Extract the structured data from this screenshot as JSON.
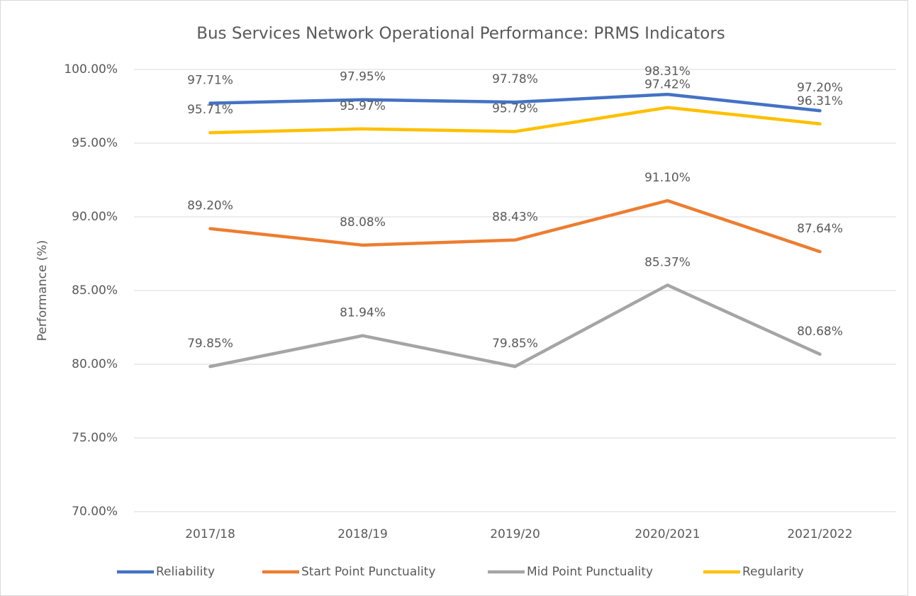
{
  "chart_data": {
    "type": "line",
    "title": "Bus Services Network Operational Performance: PRMS Indicators",
    "ylabel": "Performance (%)",
    "categories": [
      "2017/18",
      "2018/19",
      "2019/20",
      "2020/2021",
      "2021/2022"
    ],
    "ylim": [
      70,
      100
    ],
    "yticks": [
      {
        "value": 70,
        "label": "70.00%"
      },
      {
        "value": 75,
        "label": "75.00%"
      },
      {
        "value": 80,
        "label": "80.00%"
      },
      {
        "value": 85,
        "label": "85.00%"
      },
      {
        "value": 90,
        "label": "90.00%"
      },
      {
        "value": 95,
        "label": "95.00%"
      },
      {
        "value": 100,
        "label": "100.00%"
      }
    ],
    "grid": true,
    "legend": "bottom",
    "series": [
      {
        "name": "Reliability",
        "color": "#4472c4",
        "values": [
          97.71,
          97.95,
          97.78,
          98.31,
          97.2
        ],
        "value_labels": [
          "97.71%",
          "97.95%",
          "97.78%",
          "98.31%",
          "97.20%"
        ]
      },
      {
        "name": "Start Point Punctuality",
        "color": "#ed7d31",
        "values": [
          89.2,
          88.08,
          88.43,
          91.1,
          87.64
        ],
        "value_labels": [
          "89.20%",
          "88.08%",
          "88.43%",
          "91.10%",
          "87.64%"
        ]
      },
      {
        "name": "Mid Point Punctuality",
        "color": "#a5a5a5",
        "values": [
          79.85,
          81.94,
          79.85,
          85.37,
          80.68
        ],
        "value_labels": [
          "79.85%",
          "81.94%",
          "79.85%",
          "85.37%",
          "80.68%"
        ]
      },
      {
        "name": "Regularity",
        "color": "#ffc000",
        "values": [
          95.71,
          95.97,
          95.79,
          97.42,
          96.31
        ],
        "value_labels": [
          "95.71%",
          "95.97%",
          "95.79%",
          "97.42%",
          "96.31%"
        ]
      }
    ]
  }
}
